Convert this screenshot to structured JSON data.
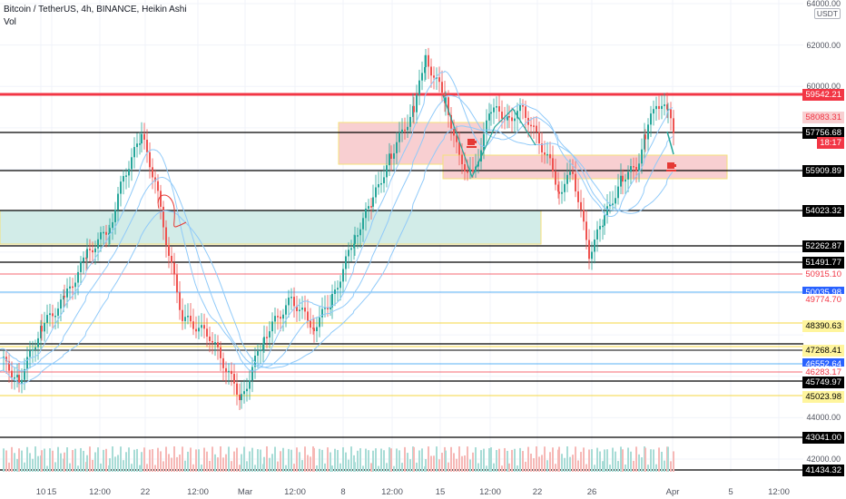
{
  "header": {
    "title": "Bitcoin / TetherUS, 4h, BINANCE, Heikin Ashi",
    "volume_label": "Vol"
  },
  "price_axis": {
    "currency": "USDT",
    "ticks": [
      "64000.00",
      "62000.00",
      "60000.00",
      "44000.00",
      "42000.00"
    ]
  },
  "price_labels": [
    {
      "value": "59542.21",
      "style": "red"
    },
    {
      "value": "58083.31",
      "style": "pink"
    },
    {
      "value": "57756.68",
      "style": "black"
    },
    {
      "value": "18:17",
      "style": "red"
    },
    {
      "value": "55909.89",
      "style": "black"
    },
    {
      "value": "54023.32",
      "style": "black"
    },
    {
      "value": "52262.87",
      "style": "black"
    },
    {
      "value": "51491.77",
      "style": "black"
    },
    {
      "value": "50915.10",
      "style": "redtext"
    },
    {
      "value": "50035.98",
      "style": "blue"
    },
    {
      "value": "49774.70",
      "style": "redtext"
    },
    {
      "value": "48390.63",
      "style": "yellow"
    },
    {
      "value": "47268.41",
      "style": "yellow"
    },
    {
      "value": "46552.64",
      "style": "blue"
    },
    {
      "value": "46283.17",
      "style": "redtext"
    },
    {
      "value": "45749.97",
      "style": "black"
    },
    {
      "value": "45023.98",
      "style": "yellow"
    },
    {
      "value": "43041.00",
      "style": "black"
    },
    {
      "value": "41434.32",
      "style": "black"
    }
  ],
  "time_axis": [
    "10",
    "15",
    "12:00",
    "22",
    "12:00",
    "Mar",
    "12:00",
    "8",
    "12:00",
    "15",
    "12:00",
    "22",
    "26",
    "Apr",
    "5",
    "12:00"
  ],
  "colors": {
    "up": "#26a69a",
    "down": "#ef5350",
    "resistance": "#f23645",
    "zone_red": "#f8cfd1",
    "zone_green": "#d2ece8",
    "zone_border": "#f5e07a"
  },
  "icons": [
    "alert-icon",
    "alert-icon"
  ]
}
